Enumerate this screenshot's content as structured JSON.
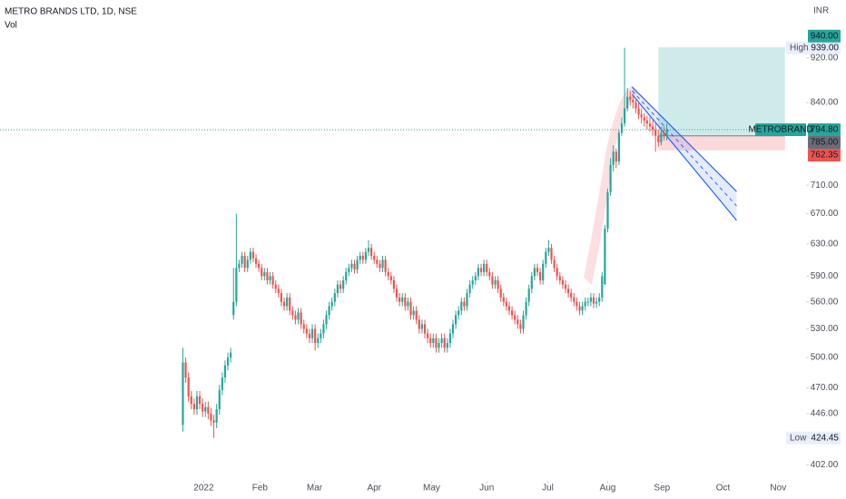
{
  "chart_data": {
    "type": "candlestick",
    "title": "METRO BRANDS LTD, 1D, NSE",
    "volume_label": "Vol",
    "currency": "INR",
    "log_scale": true,
    "up_color": "#26a69a",
    "down_color": "#ef5350",
    "xlim": [
      -65,
      221.5
    ],
    "ylim": [
      389,
      1035
    ],
    "xticks": [
      {
        "value": 7.4,
        "label": "2022"
      },
      {
        "value": 27.4,
        "label": "Feb"
      },
      {
        "value": 46.8,
        "label": "Mar"
      },
      {
        "value": 68,
        "label": "Apr"
      },
      {
        "value": 88.4,
        "label": "May"
      },
      {
        "value": 108,
        "label": "Jun"
      },
      {
        "value": 129.7,
        "label": "Jul"
      },
      {
        "value": 151,
        "label": "Aug"
      },
      {
        "value": 170.3,
        "label": "Sep"
      },
      {
        "value": 192,
        "label": "Oct"
      },
      {
        "value": 211.6,
        "label": "Nov"
      }
    ],
    "yticks": [
      {
        "value": 920,
        "label": "920.00"
      },
      {
        "value": 840,
        "label": "840.00"
      },
      {
        "value": 710,
        "label": "710.00"
      },
      {
        "value": 670,
        "label": "670.00"
      },
      {
        "value": 630,
        "label": "630.00"
      },
      {
        "value": 590,
        "label": "590.00"
      },
      {
        "value": 560,
        "label": "560.00"
      },
      {
        "value": 530,
        "label": "530.00"
      },
      {
        "value": 500,
        "label": "500.00"
      },
      {
        "value": 470,
        "label": "470.00"
      },
      {
        "value": 446,
        "label": "446.00"
      },
      {
        "value": 402,
        "label": "402.00"
      }
    ],
    "open": [
      436,
      495,
      480,
      462,
      455,
      450,
      462,
      455,
      448,
      452,
      446,
      440,
      438,
      450,
      468,
      480,
      492,
      500,
      545,
      560,
      600,
      605,
      615,
      600,
      610,
      620,
      612,
      605,
      600,
      590,
      595,
      585,
      590,
      580,
      575,
      570,
      560,
      555,
      565,
      550,
      545,
      540,
      548,
      535,
      530,
      525,
      520,
      530,
      515,
      520,
      525,
      535,
      545,
      555,
      560,
      570,
      580,
      575,
      585,
      595,
      600,
      605,
      598,
      610,
      615,
      610,
      620,
      625,
      615,
      610,
      605,
      600,
      610,
      595,
      590,
      585,
      575,
      565,
      560,
      565,
      555,
      560,
      545,
      550,
      540,
      530,
      535,
      525,
      520,
      515,
      520,
      510,
      515,
      520,
      510,
      515,
      525,
      535,
      545,
      550,
      560,
      555,
      570,
      580,
      585,
      590,
      600,
      595,
      605,
      595,
      590,
      580,
      585,
      575,
      565,
      560,
      555,
      550,
      545,
      540,
      535,
      530,
      545,
      560,
      575,
      590,
      600,
      595,
      585,
      605,
      620,
      625,
      610,
      600,
      590,
      585,
      580,
      575,
      570,
      565,
      560,
      555,
      550,
      555,
      560,
      560,
      565,
      558,
      560,
      565,
      580,
      650,
      700,
      740,
      760,
      745,
      790,
      805,
      830,
      850,
      845,
      840,
      830,
      820,
      815,
      810,
      805,
      800,
      795,
      785,
      775,
      790,
      785
    ],
    "high": [
      510,
      500,
      485,
      467,
      460,
      467,
      467,
      460,
      457,
      457,
      451,
      445,
      455,
      473,
      485,
      497,
      505,
      510,
      600,
      670,
      610,
      620,
      620,
      615,
      625,
      625,
      617,
      610,
      605,
      600,
      600,
      595,
      595,
      585,
      580,
      575,
      565,
      570,
      570,
      555,
      550,
      553,
      553,
      540,
      535,
      530,
      535,
      535,
      525,
      530,
      540,
      550,
      560,
      565,
      575,
      585,
      585,
      590,
      600,
      605,
      610,
      610,
      615,
      620,
      620,
      625,
      635,
      630,
      620,
      615,
      610,
      615,
      615,
      600,
      595,
      590,
      580,
      570,
      570,
      570,
      565,
      565,
      555,
      555,
      545,
      540,
      540,
      530,
      525,
      525,
      525,
      520,
      525,
      525,
      520,
      530,
      540,
      550,
      555,
      565,
      565,
      575,
      585,
      590,
      595,
      605,
      605,
      610,
      610,
      600,
      595,
      590,
      590,
      580,
      570,
      565,
      560,
      555,
      550,
      545,
      540,
      550,
      565,
      580,
      595,
      605,
      605,
      600,
      610,
      625,
      635,
      630,
      615,
      605,
      595,
      590,
      585,
      580,
      575,
      570,
      565,
      560,
      560,
      565,
      565,
      570,
      570,
      565,
      570,
      595,
      655,
      705,
      750,
      770,
      765,
      795,
      815,
      939,
      865,
      860,
      855,
      848,
      840,
      830,
      822,
      818,
      815,
      810,
      805,
      795,
      800,
      800,
      805
    ],
    "low": [
      430,
      475,
      457,
      450,
      445,
      445,
      450,
      443,
      443,
      441,
      435,
      424.45,
      433,
      445,
      463,
      475,
      487,
      495,
      540,
      555,
      595,
      600,
      595,
      595,
      605,
      607,
      600,
      595,
      585,
      585,
      580,
      580,
      575,
      570,
      565,
      555,
      550,
      550,
      545,
      540,
      535,
      535,
      530,
      525,
      520,
      515,
      515,
      507,
      510,
      515,
      520,
      530,
      540,
      550,
      555,
      565,
      570,
      570,
      580,
      590,
      595,
      593,
      593,
      605,
      605,
      605,
      615,
      610,
      605,
      600,
      595,
      595,
      590,
      585,
      580,
      570,
      560,
      555,
      555,
      550,
      550,
      540,
      540,
      535,
      525,
      525,
      520,
      515,
      510,
      510,
      505,
      505,
      510,
      505,
      505,
      510,
      520,
      530,
      540,
      545,
      550,
      550,
      565,
      575,
      580,
      585,
      590,
      590,
      590,
      585,
      575,
      575,
      570,
      560,
      555,
      550,
      545,
      540,
      535,
      530,
      525,
      525,
      540,
      555,
      570,
      585,
      590,
      580,
      580,
      600,
      615,
      605,
      595,
      585,
      580,
      575,
      570,
      565,
      560,
      555,
      550,
      545,
      545,
      550,
      555,
      555,
      553,
      553,
      555,
      560,
      585,
      645,
      695,
      730,
      735,
      740,
      785,
      800,
      825,
      835,
      830,
      822,
      812,
      805,
      800,
      795,
      792,
      785,
      760,
      768,
      770,
      778,
      778
    ],
    "close": [
      495,
      480,
      462,
      455,
      450,
      462,
      455,
      448,
      452,
      446,
      440,
      438,
      450,
      468,
      480,
      492,
      500,
      505,
      560,
      600,
      605,
      615,
      600,
      610,
      620,
      612,
      605,
      600,
      590,
      595,
      585,
      590,
      580,
      575,
      570,
      560,
      555,
      565,
      550,
      545,
      540,
      548,
      535,
      530,
      525,
      520,
      530,
      515,
      520,
      525,
      535,
      545,
      555,
      560,
      570,
      580,
      575,
      585,
      595,
      600,
      605,
      598,
      610,
      615,
      610,
      620,
      625,
      615,
      610,
      605,
      600,
      610,
      595,
      590,
      585,
      575,
      565,
      560,
      565,
      555,
      560,
      545,
      550,
      540,
      530,
      535,
      525,
      520,
      515,
      520,
      510,
      515,
      520,
      510,
      515,
      525,
      535,
      545,
      550,
      560,
      555,
      570,
      580,
      585,
      590,
      600,
      595,
      605,
      595,
      590,
      580,
      585,
      575,
      565,
      560,
      555,
      550,
      545,
      540,
      535,
      530,
      545,
      560,
      575,
      590,
      600,
      595,
      585,
      605,
      620,
      625,
      610,
      600,
      590,
      585,
      580,
      575,
      570,
      565,
      560,
      555,
      550,
      555,
      560,
      560,
      565,
      558,
      560,
      565,
      590,
      650,
      700,
      740,
      760,
      745,
      790,
      805,
      830,
      850,
      845,
      840,
      830,
      820,
      815,
      810,
      805,
      800,
      795,
      785,
      775,
      790,
      785,
      794.8
    ],
    "price_tags": [
      {
        "value": 940,
        "label": "940.00",
        "color": "#26a69a"
      },
      {
        "value": 794.8,
        "label": "794.80",
        "symbol": "METROBRAND",
        "color": "#26a69a"
      },
      {
        "value": 785,
        "label": "785.00",
        "color": "#6a6d78"
      },
      {
        "value": 762.35,
        "label": "762.35",
        "color": "#ef5350"
      }
    ],
    "high_marker": {
      "label": "High",
      "value": 939,
      "value_label": "939.00"
    },
    "low_marker": {
      "label": "Low",
      "value": 424.45,
      "value_label": "424.45"
    },
    "position": {
      "start": 169,
      "end": 214,
      "target": 940,
      "entry": 785,
      "stop": 762.35
    },
    "channel": {
      "upper": [
        [
          159.7,
          867
        ],
        [
          196.8,
          701
        ]
      ],
      "lower": [
        [
          159.7,
          854
        ],
        [
          196.8,
          661
        ]
      ]
    }
  }
}
